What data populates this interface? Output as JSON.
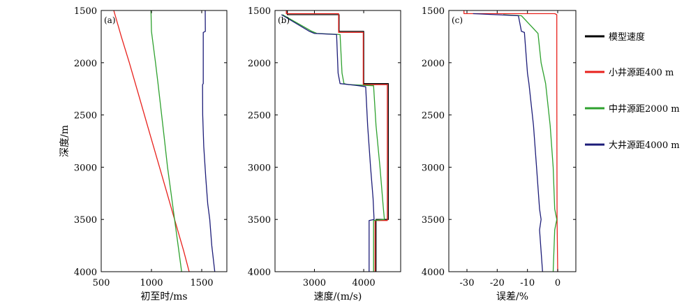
{
  "chart_data": [
    {
      "panel": "(a)",
      "type": "line",
      "xlabel": "初至时/ms",
      "ylabel": "深度/m",
      "xlim": [
        500,
        1750
      ],
      "ylim": [
        4000,
        1500
      ],
      "xticks": [
        500,
        1000,
        1500
      ],
      "yticks": [
        1500,
        2000,
        2500,
        3000,
        3500,
        4000
      ],
      "series": [
        {
          "name": "小井源距400 m",
          "color": "#e8211c",
          "points": [
            [
              625,
              1500
            ],
            [
              700,
              1750
            ],
            [
              780,
              2000
            ],
            [
              870,
              2300
            ],
            [
              960,
              2600
            ],
            [
              1050,
              2900
            ],
            [
              1140,
              3200
            ],
            [
              1230,
              3500
            ],
            [
              1320,
              3800
            ],
            [
              1375,
              4000
            ]
          ]
        },
        {
          "name": "中井源距2000 m",
          "color": "#2ea12e",
          "points": [
            [
              995,
              1500
            ],
            [
              1000,
              1700
            ],
            [
              1020,
              1850
            ],
            [
              1040,
              2000
            ],
            [
              1065,
              2200
            ],
            [
              1095,
              2450
            ],
            [
              1125,
              2700
            ],
            [
              1160,
              3000
            ],
            [
              1195,
              3250
            ],
            [
              1230,
              3500
            ],
            [
              1265,
              3750
            ],
            [
              1300,
              4000
            ]
          ]
        },
        {
          "name": "大井源距4000 m",
          "color": "#1c1c78",
          "points": [
            [
              1535,
              1500
            ],
            [
              1536,
              1700
            ],
            [
              1515,
              1710
            ],
            [
              1515,
              2200
            ],
            [
              1508,
              2210
            ],
            [
              1510,
              2500
            ],
            [
              1520,
              2800
            ],
            [
              1540,
              3100
            ],
            [
              1560,
              3350
            ],
            [
              1580,
              3500
            ],
            [
              1600,
              3750
            ],
            [
              1630,
              4000
            ]
          ]
        }
      ]
    },
    {
      "panel": "(b)",
      "type": "line",
      "xlabel": "速度/(m/s)",
      "ylabel": "",
      "xlim": [
        2200,
        4750
      ],
      "ylim": [
        4000,
        1500
      ],
      "xticks": [
        3000,
        4000
      ],
      "yticks": [
        1500,
        2000,
        2500,
        3000,
        3500,
        4000
      ],
      "series": [
        {
          "name": "模型速度",
          "color": "#000000",
          "points": [
            [
              2450,
              1500
            ],
            [
              2450,
              1540
            ],
            [
              3500,
              1540
            ],
            [
              3500,
              1700
            ],
            [
              4000,
              1700
            ],
            [
              4000,
              2200
            ],
            [
              4500,
              2200
            ],
            [
              4500,
              3500
            ],
            [
              4250,
              3500
            ],
            [
              4250,
              4000
            ]
          ]
        },
        {
          "name": "小井源距400 m",
          "color": "#e8211c",
          "points": [
            [
              2430,
              1500
            ],
            [
              2430,
              1530
            ],
            [
              3490,
              1530
            ],
            [
              3490,
              1710
            ],
            [
              3990,
              1710
            ],
            [
              3990,
              2210
            ],
            [
              4480,
              2210
            ],
            [
              4480,
              3510
            ],
            [
              4230,
              3510
            ],
            [
              4230,
              4000
            ]
          ]
        },
        {
          "name": "中井源距2000 m",
          "color": "#2ea12e",
          "points": [
            [
              2350,
              1540
            ],
            [
              2950,
              1700
            ],
            [
              3000,
              1710
            ],
            [
              3050,
              1720
            ],
            [
              3520,
              1730
            ],
            [
              3560,
              2100
            ],
            [
              3600,
              2200
            ],
            [
              3700,
              2210
            ],
            [
              4200,
              2220
            ],
            [
              4250,
              2600
            ],
            [
              4330,
              3000
            ],
            [
              4400,
              3400
            ],
            [
              4420,
              3500
            ],
            [
              4200,
              3510
            ],
            [
              4200,
              4000
            ]
          ]
        },
        {
          "name": "大井源距4000 m",
          "color": "#1c1c78",
          "points": [
            [
              2330,
              1540
            ],
            [
              2900,
              1700
            ],
            [
              3000,
              1720
            ],
            [
              3450,
              1730
            ],
            [
              3480,
              2100
            ],
            [
              3520,
              2200
            ],
            [
              3900,
              2220
            ],
            [
              4040,
              2230
            ],
            [
              4080,
              2600
            ],
            [
              4140,
              3000
            ],
            [
              4190,
              3300
            ],
            [
              4210,
              3500
            ],
            [
              4110,
              3510
            ],
            [
              4110,
              4000
            ]
          ]
        }
      ]
    },
    {
      "panel": "(c)",
      "type": "line",
      "xlabel": "误差/%",
      "ylabel": "",
      "xlim": [
        -36,
        6
      ],
      "ylim": [
        4000,
        1500
      ],
      "xticks": [
        -30,
        -20,
        -10,
        0
      ],
      "yticks": [
        1500,
        2000,
        2500,
        3000,
        3500,
        4000
      ],
      "series": [
        {
          "name": "小井源距400 m",
          "color": "#e8211c",
          "points": [
            [
              -31,
              1500
            ],
            [
              -31,
              1530
            ],
            [
              -1,
              1530
            ],
            [
              -0.3,
              1540
            ],
            [
              -0.3,
              2200
            ],
            [
              -0.2,
              3500
            ],
            [
              0,
              4000
            ]
          ]
        },
        {
          "name": "中井源距2000 m",
          "color": "#2ea12e",
          "points": [
            [
              -18,
              1540
            ],
            [
              -12,
              1550
            ],
            [
              -6.5,
              1720
            ],
            [
              -5.5,
              2000
            ],
            [
              -4,
              2200
            ],
            [
              -2.5,
              2600
            ],
            [
              -1.5,
              3000
            ],
            [
              -1,
              3400
            ],
            [
              -0.3,
              3500
            ],
            [
              -1,
              3600
            ],
            [
              -1.5,
              4000
            ]
          ]
        },
        {
          "name": "大井源距4000 m",
          "color": "#1c1c78",
          "points": [
            [
              -28,
              1530
            ],
            [
              -13,
              1550
            ],
            [
              -12,
              1700
            ],
            [
              -11,
              1710
            ],
            [
              -10,
              2100
            ],
            [
              -9.5,
              2200
            ],
            [
              -8,
              2600
            ],
            [
              -7,
              3000
            ],
            [
              -6,
              3400
            ],
            [
              -5.5,
              3500
            ],
            [
              -6,
              3600
            ],
            [
              -5,
              4000
            ]
          ]
        }
      ]
    }
  ],
  "legend": {
    "placement": "right",
    "items": [
      {
        "label": "模型速度",
        "color": "#000000"
      },
      {
        "label": "小井源距400 m",
        "color": "#e8211c"
      },
      {
        "label": "中井源距2000 m",
        "color": "#2ea12e"
      },
      {
        "label": "大井源距4000 m",
        "color": "#1c1c78"
      }
    ]
  }
}
